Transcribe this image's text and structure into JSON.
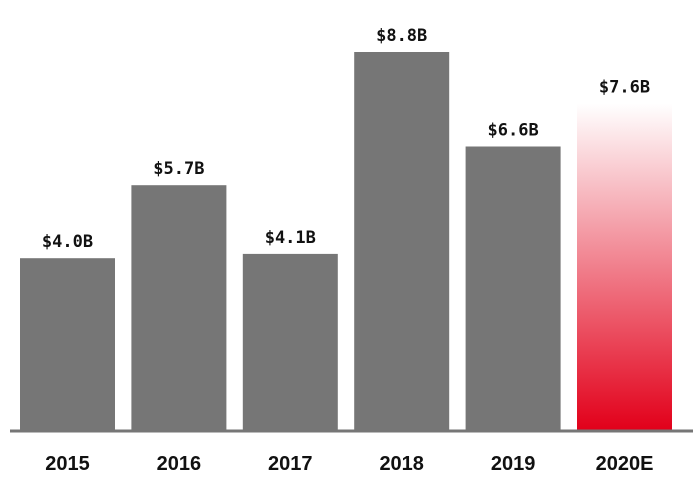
{
  "chart_data": {
    "type": "bar",
    "categories": [
      "2015",
      "2016",
      "2017",
      "2018",
      "2019",
      "2020E"
    ],
    "values": [
      4.0,
      5.7,
      4.1,
      8.8,
      6.6,
      7.6
    ],
    "value_labels": [
      "$4.0B",
      "$5.7B",
      "$4.1B",
      "$8.8B",
      "$6.6B",
      "$7.6B"
    ],
    "title": "",
    "xlabel": "",
    "ylabel": "",
    "ylim": [
      0,
      8.8
    ],
    "grid": false,
    "legend": "none",
    "colors": {
      "actual_bar": "#767676",
      "estimate_bar_bottom": "#e2001a",
      "estimate_bar_top": "#ffffff",
      "baseline": "#767676",
      "text": "#111111"
    },
    "estimate_index": 5
  }
}
